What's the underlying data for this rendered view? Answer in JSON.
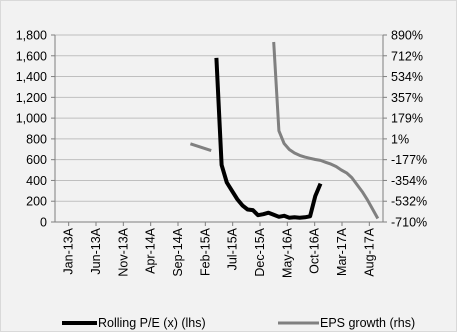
{
  "chart_data": {
    "type": "line",
    "title": "",
    "x": [
      "Jan-13A",
      "Jun-13A",
      "Nov-13A",
      "Apr-14A",
      "Sep-14A",
      "Feb-15A",
      "Jul-15A",
      "Dec-15A",
      "May-16A",
      "Oct-16A",
      "Mar-17A",
      "Aug-17A"
    ],
    "left_axis": {
      "label": "",
      "ylim": [
        0,
        1800
      ],
      "ticks": [
        "0",
        "200",
        "400",
        "600",
        "800",
        "1,000",
        "1,200",
        "1,400",
        "1,600",
        "1,800"
      ]
    },
    "right_axis": {
      "label": "",
      "ylim": [
        -710,
        890
      ],
      "ticks": [
        "-710%",
        "-532%",
        "-354%",
        "-177%",
        "1%",
        "179%",
        "357%",
        "534%",
        "712%",
        "890%"
      ]
    },
    "series": [
      {
        "name": "Rolling P/E (x) (lhs)",
        "axis": "left",
        "color": "#000000",
        "points": [
          [
            "2015-07-01",
            1580
          ],
          [
            "2015-08-01",
            550
          ],
          [
            "2015-09-01",
            380
          ],
          [
            "2015-10-01",
            300
          ],
          [
            "2015-11-01",
            220
          ],
          [
            "2015-12-01",
            160
          ],
          [
            "2016-01-01",
            120
          ],
          [
            "2016-02-01",
            115
          ],
          [
            "2016-03-01",
            65
          ],
          [
            "2016-04-01",
            75
          ],
          [
            "2016-05-01",
            90
          ],
          [
            "2016-06-01",
            70
          ],
          [
            "2016-07-01",
            50
          ],
          [
            "2016-08-01",
            60
          ],
          [
            "2016-09-01",
            40
          ],
          [
            "2016-10-01",
            45
          ],
          [
            "2016-11-01",
            40
          ],
          [
            "2016-12-01",
            45
          ],
          [
            "2017-01-01",
            55
          ],
          [
            "2017-02-01",
            250
          ],
          [
            "2017-03-01",
            370
          ]
        ]
      },
      {
        "name": "EPS growth (rhs)",
        "axis": "right",
        "color": "#808080",
        "segments": [
          [
            [
              "2015-02-01",
              -41
            ],
            [
              "2015-06-01",
              -99
            ]
          ],
          [
            [
              "2016-06-01",
              830
            ],
            [
              "2016-07-01",
              70
            ],
            [
              "2016-08-01",
              -38
            ],
            [
              "2016-09-01",
              -90
            ],
            [
              "2016-10-01",
              -120
            ],
            [
              "2016-11-01",
              -140
            ],
            [
              "2016-12-01",
              -155
            ],
            [
              "2017-01-01",
              -165
            ],
            [
              "2017-02-01",
              -175
            ],
            [
              "2017-03-01",
              -183
            ],
            [
              "2017-04-01",
              -199
            ],
            [
              "2017-05-01",
              -215
            ],
            [
              "2017-06-01",
              -235
            ],
            [
              "2017-07-01",
              -265
            ],
            [
              "2017-08-01",
              -290
            ],
            [
              "2017-09-01",
              -330
            ],
            [
              "2017-10-01",
              -390
            ],
            [
              "2017-11-01",
              -450
            ],
            [
              "2017-12-01",
              -520
            ],
            [
              "2018-01-01",
              -600
            ],
            [
              "2018-02-01",
              -680
            ]
          ]
        ]
      }
    ],
    "legend_position": "bottom",
    "grid": "horizontal"
  }
}
